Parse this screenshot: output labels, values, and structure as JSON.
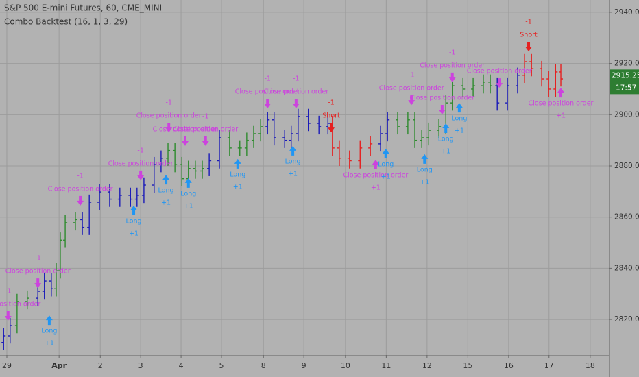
{
  "chart_data": {
    "type": "ohlc",
    "title": "S&P 500 E-mini Futures, 60, CME_MINI",
    "subtitle": "Combo Backtest (16, 1, 3, 29)",
    "ylim": [
      2806.1,
      2944.8
    ],
    "yticks": [
      {
        "value": 2820,
        "label": "2820.00"
      },
      {
        "value": 2840,
        "label": "2840.00"
      },
      {
        "value": 2860,
        "label": "2860.00"
      },
      {
        "value": 2880,
        "label": "2880.00"
      },
      {
        "value": 2900,
        "label": "2900.00"
      },
      {
        "value": 2920,
        "label": "2920.00"
      },
      {
        "value": 2940,
        "label": "2940.00"
      }
    ],
    "xlim": [
      -0.168,
      14.756
    ],
    "xticks": [
      {
        "value": 0,
        "label": "29"
      },
      {
        "value": 1.28,
        "label": "Apr"
      },
      {
        "value": 2.29,
        "label": "2"
      },
      {
        "value": 3.28,
        "label": "3"
      },
      {
        "value": 4.27,
        "label": "4"
      },
      {
        "value": 5.26,
        "label": "5"
      },
      {
        "value": 6.29,
        "label": "8"
      },
      {
        "value": 7.28,
        "label": "9"
      },
      {
        "value": 8.3,
        "label": "10"
      },
      {
        "value": 9.3,
        "label": "11"
      },
      {
        "value": 10.3,
        "label": "12"
      },
      {
        "value": 11.3,
        "label": "15"
      },
      {
        "value": 12.3,
        "label": "16"
      },
      {
        "value": 13.29,
        "label": "17"
      },
      {
        "value": 14.3,
        "label": "18"
      }
    ],
    "grid": true,
    "x": [
      -0.08,
      0.08,
      0.25,
      0.5,
      0.76,
      0.92,
      1.09,
      1.21,
      1.31,
      1.43,
      1.68,
      1.85,
      2.02,
      2.27,
      2.52,
      2.77,
      3.03,
      3.19,
      3.36,
      3.61,
      3.78,
      3.95,
      4.12,
      4.29,
      4.45,
      4.62,
      4.79,
      4.96,
      5.21,
      5.46,
      5.71,
      5.88,
      6.05,
      6.22,
      6.39,
      6.55,
      6.81,
      6.97,
      7.14,
      7.39,
      7.65,
      7.87,
      7.98,
      8.15,
      8.4,
      8.66,
      8.91,
      9.16,
      9.33,
      9.58,
      9.83,
      10,
      10.17,
      10.34,
      10.59,
      10.76,
      10.92,
      11.18,
      11.43,
      11.68,
      11.85,
      12.02,
      12.27,
      12.52,
      12.69,
      12.86,
      13.11,
      13.28,
      13.45,
      13.58
    ],
    "open": [
      2811,
      2813.6,
      2817.6,
      2827,
      2828.3,
      2831,
      2835,
      2832,
      2839,
      2851,
      2857.8,
      2859,
      2856,
      2865.8,
      2869.8,
      2867,
      2868.5,
      2867,
      2868.5,
      2872.5,
      2880.5,
      2883,
      2886,
      2880.5,
      2875,
      2879,
      2878,
      2879,
      2882,
      2891,
      2887,
      2887,
      2890,
      2892.6,
      2895.3,
      2898,
      2891,
      2890,
      2892.6,
      2899.3,
      2896.6,
      2895.3,
      2896.6,
      2887,
      2883,
      2882,
      2887,
      2888.6,
      2892.6,
      2898,
      2895.3,
      2898,
      2890,
      2891,
      2893.9,
      2895.3,
      2904.6,
      2911.3,
      2910,
      2911.3,
      2912.7,
      2911.3,
      2904.6,
      2911.3,
      2915.4,
      2920.7,
      2918,
      2914,
      2910,
      2916.7
    ],
    "high": [
      2816.6,
      2820.6,
      2830,
      2831.3,
      2834,
      2838,
      2838,
      2842,
      2854,
      2860.8,
      2862,
      2862,
      2868.8,
      2872.8,
      2872.8,
      2871.5,
      2871.5,
      2871.5,
      2875.5,
      2883.5,
      2886,
      2889,
      2889,
      2883.5,
      2882,
      2882,
      2882,
      2885,
      2894,
      2894,
      2890,
      2893,
      2895.6,
      2898.3,
      2901,
      2901,
      2894,
      2895.6,
      2902.3,
      2902.3,
      2899.6,
      2899.6,
      2899.6,
      2890,
      2886,
      2890,
      2891.6,
      2895.6,
      2901,
      2901,
      2901,
      2901,
      2894,
      2896.9,
      2898.3,
      2907.6,
      2914.3,
      2914.3,
      2914.3,
      2915.7,
      2915.7,
      2914.3,
      2914.3,
      2918.4,
      2923.7,
      2923.7,
      2921,
      2917,
      2919.7,
      2919.7
    ],
    "low": [
      2808,
      2810.6,
      2814.6,
      2824,
      2825.3,
      2828,
      2829,
      2829,
      2836,
      2848,
      2854.8,
      2853,
      2853,
      2862.8,
      2864,
      2864,
      2864,
      2864,
      2865.5,
      2869.5,
      2877.5,
      2880,
      2877.5,
      2872,
      2872,
      2875,
      2875,
      2876,
      2879,
      2884,
      2884,
      2884,
      2887,
      2889.6,
      2892.3,
      2888,
      2887,
      2887,
      2889.6,
      2893.6,
      2892.3,
      2892.3,
      2884,
      2880,
      2879,
      2879,
      2884,
      2885.6,
      2889.6,
      2892.3,
      2892.3,
      2887,
      2887,
      2888,
      2890.9,
      2892.3,
      2901.6,
      2907,
      2907,
      2908.3,
      2908.3,
      2901.6,
      2901.6,
      2908.3,
      2912.4,
      2915,
      2911,
      2907,
      2907,
      2911
    ],
    "close": [
      2813.6,
      2817.6,
      2827,
      2828.3,
      2831,
      2835,
      2832,
      2839,
      2851,
      2857.8,
      2859,
      2856,
      2865.8,
      2869.8,
      2867,
      2868.5,
      2867,
      2868.5,
      2872.5,
      2880.5,
      2883,
      2886,
      2880.5,
      2875,
      2879,
      2878,
      2879,
      2882,
      2891,
      2887,
      2887,
      2890,
      2892.6,
      2895.3,
      2898,
      2891,
      2890,
      2892.6,
      2899.3,
      2896.6,
      2895.3,
      2896.6,
      2887,
      2883,
      2882,
      2887,
      2888.6,
      2892.6,
      2898,
      2895.3,
      2898,
      2890,
      2891,
      2893.9,
      2895.3,
      2904.6,
      2911.3,
      2910,
      2911.3,
      2912.7,
      2911.3,
      2904.6,
      2911.3,
      2915.4,
      2920.7,
      2918,
      2914,
      2910,
      2916.7,
      2914
    ],
    "colors": [
      "#1a1ab8",
      "#1a1ab8",
      "#2e8b2e",
      "#2e8b2e",
      "#1a1ab8",
      "#1a1ab8",
      "#1a1ab8",
      "#2e8b2e",
      "#2e8b2e",
      "#2e8b2e",
      "#2e8b2e",
      "#1a1ab8",
      "#1a1ab8",
      "#1a1ab8",
      "#1a1ab8",
      "#1a1ab8",
      "#1a1ab8",
      "#1a1ab8",
      "#1a1ab8",
      "#1a1ab8",
      "#1a1ab8",
      "#2e8b2e",
      "#2e8b2e",
      "#2e8b2e",
      "#2e8b2e",
      "#2e8b2e",
      "#2e8b2e",
      "#1a1ab8",
      "#1a1ab8",
      "#2e8b2e",
      "#2e8b2e",
      "#2e8b2e",
      "#2e8b2e",
      "#2e8b2e",
      "#1a1ab8",
      "#1a1ab8",
      "#1a1ab8",
      "#1a1ab8",
      "#1a1ab8",
      "#1a1ab8",
      "#1a1ab8",
      "#1a1ab8",
      "#e52020",
      "#e52020",
      "#e52020",
      "#e52020",
      "#e52020",
      "#1a1ab8",
      "#1a1ab8",
      "#2e8b2e",
      "#2e8b2e",
      "#2e8b2e",
      "#2e8b2e",
      "#2e8b2e",
      "#2e8b2e",
      "#2e8b2e",
      "#2e8b2e",
      "#2e8b2e",
      "#2e8b2e",
      "#2e8b2e",
      "#2e8b2e",
      "#1a1ab8",
      "#1a1ab8",
      "#1a1ab8",
      "#e52020",
      "#e52020",
      "#e52020",
      "#e52020",
      "#e52020",
      "#e52020"
    ],
    "signals": [
      {
        "x": 0.03,
        "price": 2819.5,
        "label": "Close position order",
        "qty": "-1",
        "position": "above",
        "color": "#cc44dd"
      },
      {
        "x": 0.76,
        "price": 2832.3,
        "label": "Close position order",
        "qty": "-1",
        "position": "above",
        "color": "#cc44dd"
      },
      {
        "x": 1.04,
        "price": 2821.6,
        "label": "Long",
        "qty": "+1",
        "position": "below",
        "color": "#2196f3"
      },
      {
        "x": 1.8,
        "price": 2864.5,
        "label": "Close position order",
        "qty": "-1",
        "position": "above",
        "color": "#cc44dd"
      },
      {
        "x": 3.11,
        "price": 2864.5,
        "label": "Long",
        "qty": "+1",
        "position": "below",
        "color": "#2196f3"
      },
      {
        "x": 3.28,
        "price": 2874.4,
        "label": "Close position order",
        "qty": "-1",
        "position": "above",
        "color": "#cc44dd"
      },
      {
        "x": 3.9,
        "price": 2876.5,
        "label": "Long",
        "qty": "+1",
        "position": "below",
        "color": "#2196f3"
      },
      {
        "x": 3.97,
        "price": 2893.1,
        "label": "Close position order",
        "qty": "-1",
        "position": "above",
        "color": "#cc44dd"
      },
      {
        "x": 4.45,
        "price": 2875.2,
        "label": "Long",
        "qty": "+1",
        "position": "below",
        "color": "#2196f3"
      },
      {
        "x": 4.37,
        "price": 2887.8,
        "label": "Close position order",
        "position": "above",
        "color": "#cc44dd"
      },
      {
        "x": 4.87,
        "price": 2887.8,
        "label": "Close position order",
        "qty": "-1",
        "position": "above",
        "color": "#cc44dd"
      },
      {
        "x": 5.66,
        "price": 2882.7,
        "label": "Long",
        "qty": "+1",
        "position": "below",
        "color": "#2196f3"
      },
      {
        "x": 6.39,
        "price": 2902.5,
        "label": "Close position order",
        "qty": "-1",
        "position": "above",
        "color": "#cc44dd"
      },
      {
        "x": 7.01,
        "price": 2887.8,
        "label": "Long",
        "qty": "+1",
        "position": "below",
        "color": "#2196f3"
      },
      {
        "x": 7.09,
        "price": 2902.5,
        "label": "Close position order",
        "qty": "-1",
        "position": "above",
        "color": "#cc44dd"
      },
      {
        "x": 7.95,
        "price": 2893.1,
        "label": "Short",
        "qty": "-1",
        "position": "above",
        "color": "#e52020"
      },
      {
        "x": 9.04,
        "price": 2882.4,
        "label": "Close position order",
        "qty": "+1",
        "position": "below",
        "color": "#cc44dd"
      },
      {
        "x": 9.29,
        "price": 2886.7,
        "label": "Long",
        "qty": "+1",
        "position": "below",
        "color": "#2196f3"
      },
      {
        "x": 9.92,
        "price": 2903.8,
        "label": "Close position order",
        "qty": "-1",
        "position": "above",
        "color": "#cc44dd"
      },
      {
        "x": 10.24,
        "price": 2884.6,
        "label": "Long",
        "qty": "+1",
        "position": "below",
        "color": "#2196f3"
      },
      {
        "x": 10.67,
        "price": 2900.1,
        "label": "Close position order",
        "position": "above",
        "color": "#cc44dd"
      },
      {
        "x": 10.76,
        "price": 2896.6,
        "label": "Long",
        "qty": "+1",
        "position": "below",
        "color": "#2196f3"
      },
      {
        "x": 10.92,
        "price": 2912.7,
        "label": "Close position order",
        "qty": "-1",
        "position": "above",
        "color": "#cc44dd"
      },
      {
        "x": 11.09,
        "price": 2904.6,
        "label": "Long",
        "qty": "+1",
        "position": "below",
        "color": "#2196f3"
      },
      {
        "x": 12.07,
        "price": 2910.5,
        "label": "Close position order",
        "position": "above",
        "color": "#cc44dd"
      },
      {
        "x": 12.79,
        "price": 2924.7,
        "label": "Short",
        "qty": "-1",
        "position": "above",
        "color": "#e52020"
      },
      {
        "x": 13.58,
        "price": 2910.5,
        "label": "Close position order",
        "qty": "+1",
        "position": "below",
        "color": "#cc44dd"
      }
    ],
    "last_price": 2915.25,
    "countdown": "17:57"
  }
}
